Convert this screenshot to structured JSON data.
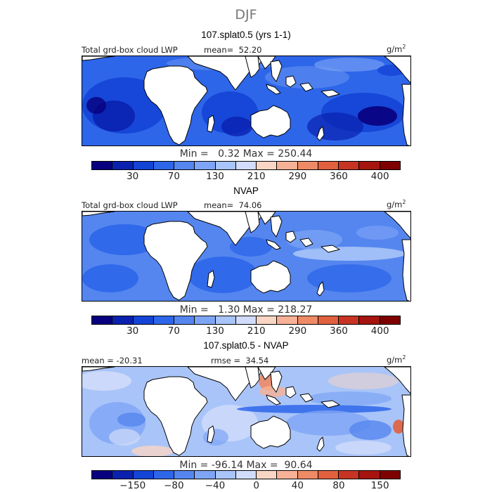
{
  "season": "DJF",
  "colors": {
    "abs_scale": [
      "#08007e",
      "#0a21b0",
      "#1444d6",
      "#2e66ea",
      "#5586ef",
      "#7ea5f5",
      "#a9c4f8",
      "#d0dcfa",
      "#f9d6c4",
      "#f6b196",
      "#ee8a66",
      "#e1603e",
      "#c83423",
      "#a6140f",
      "#7e0000"
    ],
    "diff_scale": [
      "#08007e",
      "#0a21b0",
      "#1444d6",
      "#2e66ea",
      "#5586ef",
      "#7ea5f5",
      "#a9c4f8",
      "#d0dcfa",
      "#f9d6c4",
      "#f6b196",
      "#ee8a66",
      "#e1603e",
      "#c83423",
      "#a6140f",
      "#7e0000"
    ],
    "land": "#ffffff",
    "coast": "#000000"
  },
  "chart_data": [
    {
      "type": "heatmap",
      "title": "107.splat0.5 (yrs 1-1)",
      "variable": "Total grd-box cloud LWP",
      "mean_label": "mean=",
      "mean": "52.20",
      "units": "g/m",
      "units_exp": "2",
      "min_label": "Min =",
      "min": "0.32",
      "max_label": "Max =",
      "max": "250.44",
      "colorbar_ticks": [
        "30",
        "70",
        "130",
        "210",
        "290",
        "360",
        "400"
      ],
      "levels": [
        15,
        30,
        50,
        70,
        100,
        130,
        170,
        210,
        250,
        290,
        330,
        360,
        380,
        400,
        430
      ],
      "pattern": "model"
    },
    {
      "type": "heatmap",
      "title": "NVAP",
      "variable": "Total grd-box cloud LWP",
      "mean_label": "mean=",
      "mean": "74.06",
      "units": "g/m",
      "units_exp": "2",
      "min_label": "Min =",
      "min": "1.30",
      "max_label": "Max =",
      "max": "218.27",
      "colorbar_ticks": [
        "30",
        "70",
        "130",
        "210",
        "290",
        "360",
        "400"
      ],
      "levels": [
        15,
        30,
        50,
        70,
        100,
        130,
        170,
        210,
        250,
        290,
        330,
        360,
        380,
        400,
        430
      ],
      "pattern": "obs"
    },
    {
      "type": "heatmap",
      "title": "107.splat0.5 - NVAP",
      "variable": "",
      "mean_label": "mean =",
      "mean": "-20.31",
      "rmse_label": "rmse =",
      "rmse": "34.54",
      "units": "g/m",
      "units_exp": "2",
      "min_label": "Min =",
      "min": "-96.14",
      "max_label": "Max =",
      "max": "90.64",
      "colorbar_ticks": [
        "−150",
        "−80",
        "−40",
        "0",
        "40",
        "80",
        "150"
      ],
      "levels": [
        -200,
        -150,
        -120,
        -80,
        -60,
        -40,
        -20,
        0,
        20,
        40,
        60,
        80,
        120,
        150,
        200
      ],
      "pattern": "diff"
    }
  ]
}
